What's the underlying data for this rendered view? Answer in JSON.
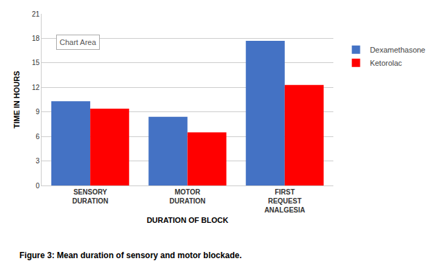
{
  "chart_data": {
    "type": "bar",
    "categories": [
      "SENSORY\nDURATION",
      "MOTOR\nDURATION",
      "FIRST\nREQUEST\nANALGESIA"
    ],
    "series": [
      {
        "name": "Dexamethasone",
        "color": "#4472C4",
        "values": [
          10.3,
          8.4,
          17.7
        ]
      },
      {
        "name": "Ketorolac",
        "color": "#FF0000",
        "values": [
          9.4,
          6.5,
          12.3
        ]
      }
    ],
    "xlabel": "DURATION OF BLOCK",
    "ylabel": "TIME IN HOURS",
    "ylim": [
      0,
      21
    ],
    "yticks": [
      0,
      3,
      6,
      9,
      12,
      15,
      18,
      21
    ],
    "grid": true,
    "legend": "right",
    "annotations": [
      "Chart Area"
    ],
    "caption": "Figure 3: Mean duration of sensory and motor blockade."
  }
}
